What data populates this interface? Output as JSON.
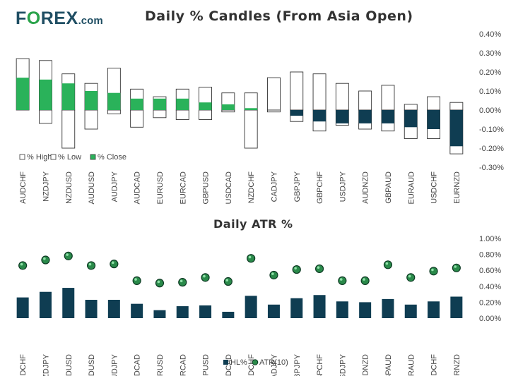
{
  "logo": {
    "part1": "F",
    "part2": "O",
    "part3": "REX",
    "part4": ".com"
  },
  "colors": {
    "green": "#2ab25a",
    "navy": "#0f3d52",
    "outline": "#333333",
    "tick": "#444444",
    "grid": "#bbbbbb"
  },
  "chart_data": [
    {
      "type": "bar",
      "title": "Daily % Candles (From Asia Open)",
      "categories": [
        "AUDCHF",
        "NZDJPY",
        "NZDUSD",
        "AUDUSD",
        "AUDJPY",
        "AUDCAD",
        "EURUSD",
        "EURCAD",
        "GBPUSD",
        "USDCAD",
        "NZDCHF",
        "CADJPY",
        "GBPJPY",
        "GBPCHF",
        "USDJPY",
        "AUDNZD",
        "GBPAUD",
        "EURAUD",
        "USDCHF",
        "EURNZD"
      ],
      "series": [
        {
          "name": "% High",
          "values": [
            0.27,
            0.26,
            0.19,
            0.14,
            0.22,
            0.11,
            0.07,
            0.11,
            0.12,
            0.09,
            0.09,
            0.17,
            0.2,
            0.19,
            0.14,
            0.1,
            0.13,
            0.03,
            0.07,
            0.04
          ]
        },
        {
          "name": "% Low",
          "values": [
            0.0,
            -0.07,
            -0.2,
            -0.1,
            -0.02,
            -0.09,
            -0.04,
            -0.05,
            -0.05,
            -0.01,
            -0.2,
            -0.01,
            -0.06,
            -0.11,
            -0.08,
            -0.1,
            -0.11,
            -0.15,
            -0.15,
            -0.23
          ]
        },
        {
          "name": "% Close",
          "values": [
            0.17,
            0.16,
            0.14,
            0.1,
            0.09,
            0.06,
            0.06,
            0.06,
            0.04,
            0.03,
            0.01,
            0.0,
            -0.03,
            -0.06,
            -0.07,
            -0.07,
            -0.07,
            -0.09,
            -0.1,
            -0.19
          ]
        }
      ],
      "yticks": [
        "0.40%",
        "0.30%",
        "0.20%",
        "0.10%",
        "0.00%",
        "-0.10%",
        "-0.20%",
        "-0.30%"
      ],
      "ylim": [
        -0.3,
        0.4
      ],
      "legend": [
        "% High",
        "% Low",
        "% Close"
      ]
    },
    {
      "type": "bar",
      "title": "Daily ATR %",
      "categories": [
        "AUDCHF",
        "NZDJPY",
        "NZDUSD",
        "AUDUSD",
        "AUDJPY",
        "AUDCAD",
        "EURUSD",
        "EURCAD",
        "GBPUSD",
        "USDCAD",
        "NZDCHF",
        "CADJPY",
        "GBPJPY",
        "GBPCHF",
        "USDJPY",
        "AUDNZD",
        "GBPAUD",
        "EURAUD",
        "USDCHF",
        "EURNZD"
      ],
      "series": [
        {
          "name": "HL%",
          "values": [
            0.26,
            0.33,
            0.38,
            0.23,
            0.23,
            0.18,
            0.1,
            0.15,
            0.16,
            0.08,
            0.28,
            0.17,
            0.25,
            0.29,
            0.21,
            0.2,
            0.24,
            0.17,
            0.21,
            0.27
          ]
        },
        {
          "name": "ATR(10)",
          "values": [
            0.66,
            0.73,
            0.78,
            0.66,
            0.68,
            0.47,
            0.44,
            0.45,
            0.51,
            0.46,
            0.75,
            0.54,
            0.61,
            0.62,
            0.47,
            0.47,
            0.67,
            0.51,
            0.59,
            0.63
          ]
        }
      ],
      "yticks": [
        "1.00%",
        "0.80%",
        "0.60%",
        "0.40%",
        "0.20%",
        "0.00%"
      ],
      "ylim": [
        0,
        1.0
      ],
      "legend": [
        "HL%",
        "ATR(10)"
      ]
    }
  ]
}
